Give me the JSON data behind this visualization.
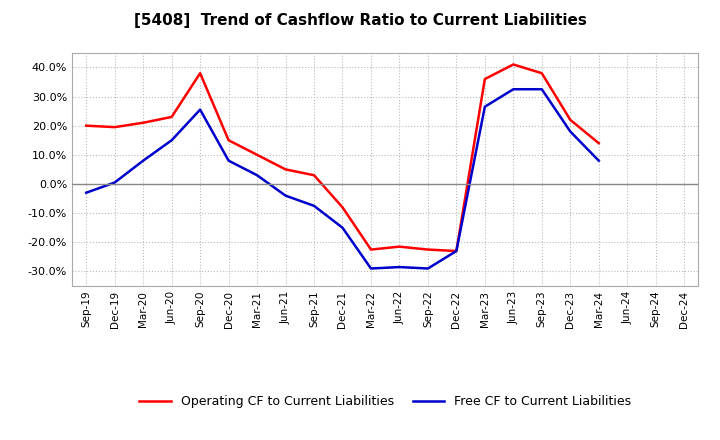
{
  "title": "[5408]  Trend of Cashflow Ratio to Current Liabilities",
  "x_labels": [
    "Sep-19",
    "Dec-19",
    "Mar-20",
    "Jun-20",
    "Sep-20",
    "Dec-20",
    "Mar-21",
    "Jun-21",
    "Sep-21",
    "Dec-21",
    "Mar-22",
    "Jun-22",
    "Sep-22",
    "Dec-22",
    "Mar-23",
    "Jun-23",
    "Sep-23",
    "Dec-23",
    "Mar-24",
    "Jun-24",
    "Sep-24",
    "Dec-24"
  ],
  "operating_cf": [
    20.0,
    19.5,
    21.0,
    23.0,
    38.0,
    15.0,
    10.0,
    5.0,
    3.0,
    -8.0,
    -22.5,
    -21.5,
    -22.5,
    -23.0,
    36.0,
    41.0,
    38.0,
    22.0,
    14.0,
    null,
    null,
    null
  ],
  "free_cf": [
    -3.0,
    0.5,
    8.0,
    15.0,
    25.5,
    8.0,
    3.0,
    -4.0,
    -7.5,
    -15.0,
    -29.0,
    -28.5,
    -29.0,
    -23.0,
    26.5,
    32.5,
    32.5,
    18.0,
    8.0,
    null,
    null,
    null
  ],
  "ylim": [
    -35,
    45
  ],
  "yticks": [
    -30,
    -20,
    -10,
    0,
    10,
    20,
    30,
    40
  ],
  "op_color": "#ff0000",
  "free_color": "#0000cc",
  "background": "#ffffff",
  "grid_color": "#aaaaaa",
  "legend_op": "Operating CF to Current Liabilities",
  "legend_free": "Free CF to Current Liabilities"
}
